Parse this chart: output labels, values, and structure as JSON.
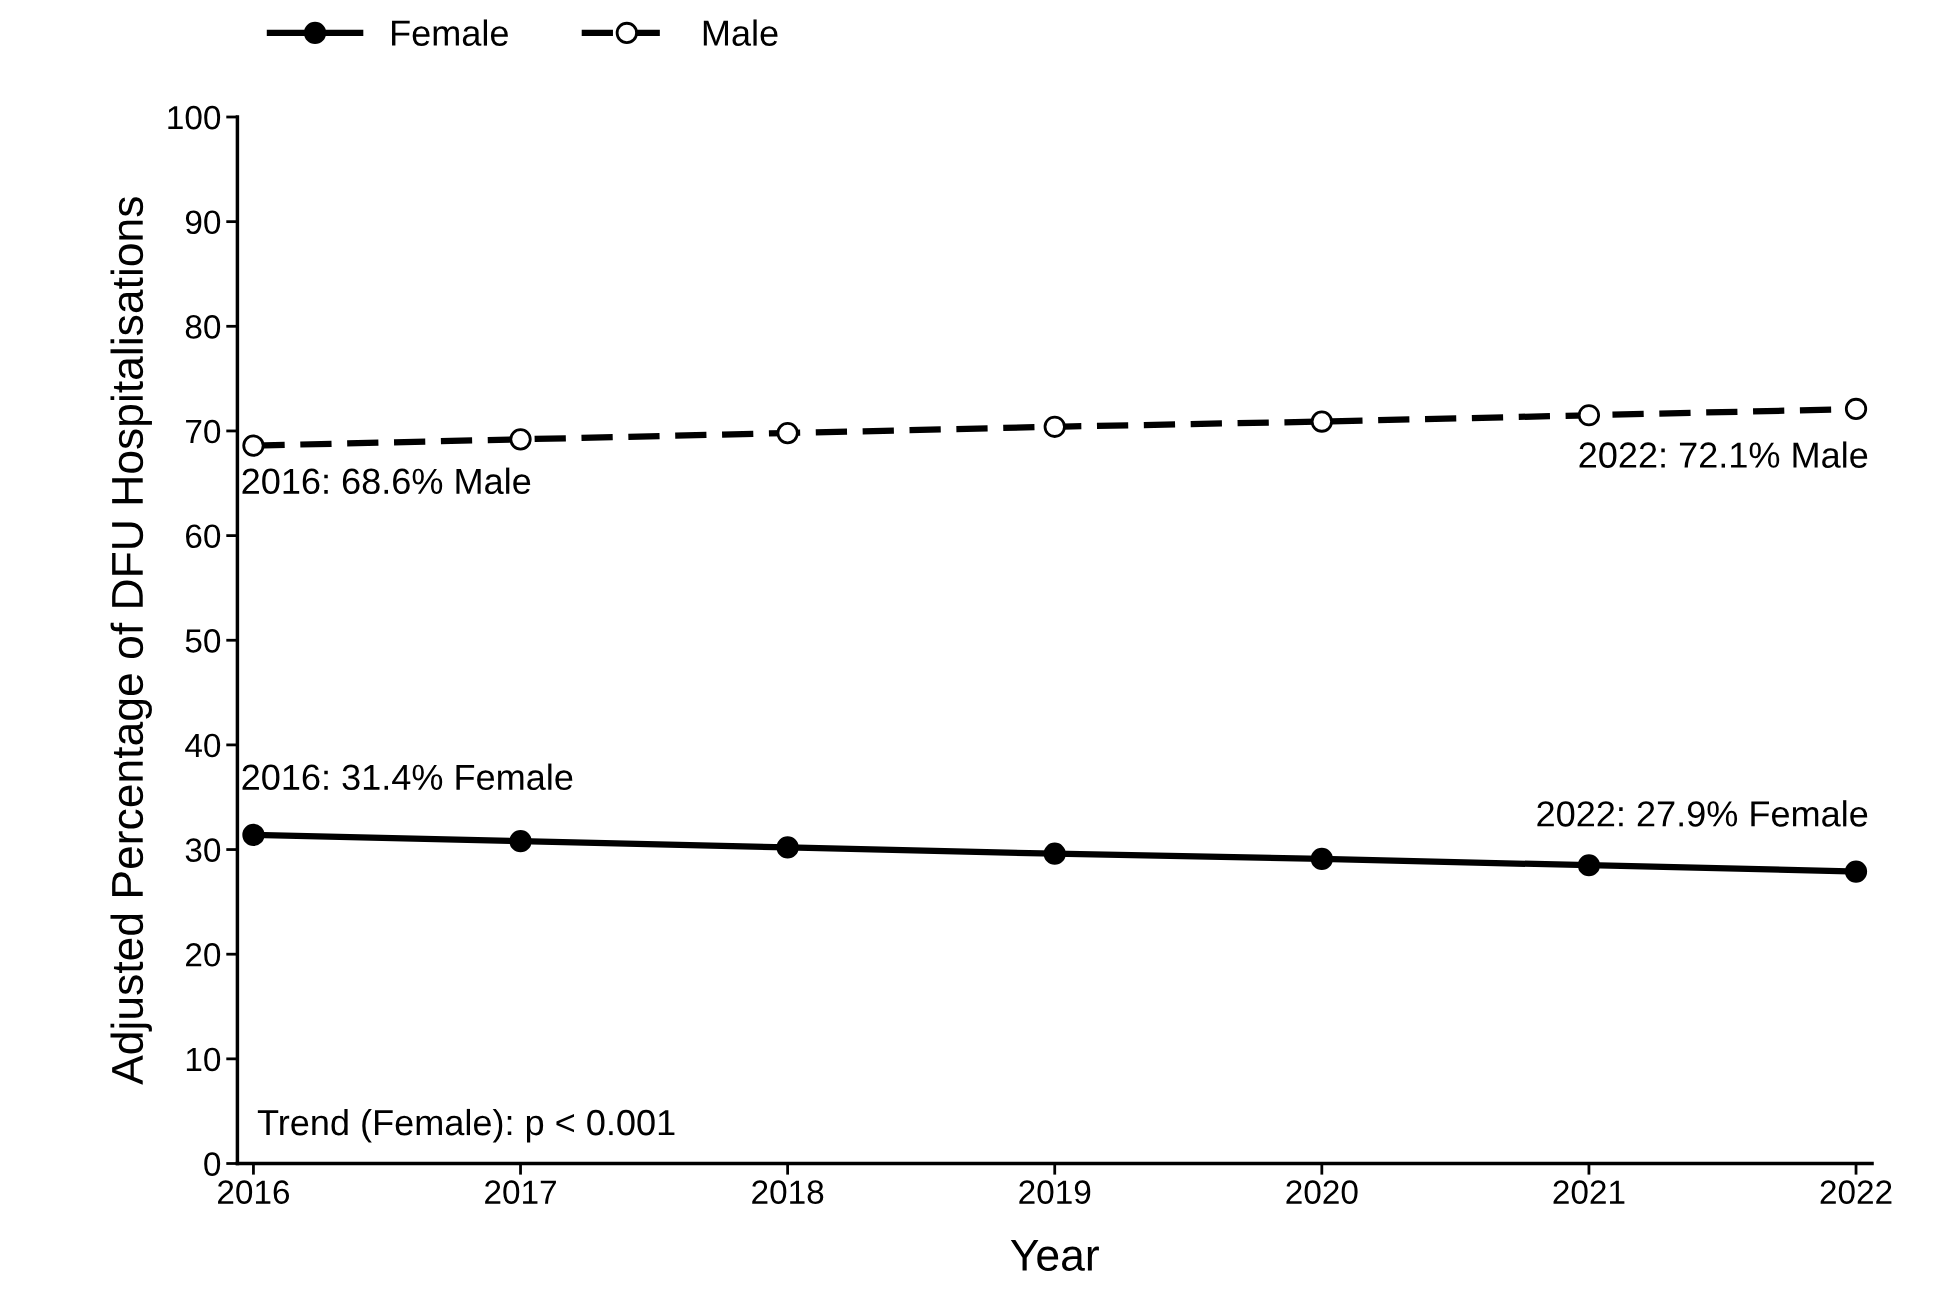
{
  "chart_data": {
    "type": "line",
    "xlabel": "Year",
    "ylabel": "Adjusted Percentage of DFU Hospitalisations",
    "x": [
      2016,
      2017,
      2018,
      2019,
      2020,
      2021,
      2022
    ],
    "series": [
      {
        "name": "Female",
        "color": "#000000",
        "line_style": "solid",
        "marker": "circle",
        "values": [
          31.4,
          30.8,
          30.2,
          29.6,
          29.1,
          28.5,
          27.9
        ]
      },
      {
        "name": "Male",
        "color": "#000000",
        "line_style": "dashed",
        "marker": "circle",
        "values": [
          68.6,
          69.2,
          69.8,
          70.4,
          70.9,
          71.5,
          72.1
        ]
      }
    ],
    "xlim": [
      2015.94,
      2022.06
    ],
    "xticks": [
      2016,
      2017,
      2018,
      2019,
      2020,
      2021,
      2022
    ],
    "ylim": [
      0,
      100
    ],
    "yticks": [
      0,
      10,
      20,
      30,
      40,
      50,
      60,
      70,
      80,
      90,
      100
    ],
    "grid": false,
    "legend": "top left",
    "annotations": [
      "2016: 68.6% Male",
      "2022: 72.1% Male",
      "2016: 31.4% Female",
      "2022: 27.9% Female",
      "Trend (Female): p < 0.001"
    ]
  }
}
